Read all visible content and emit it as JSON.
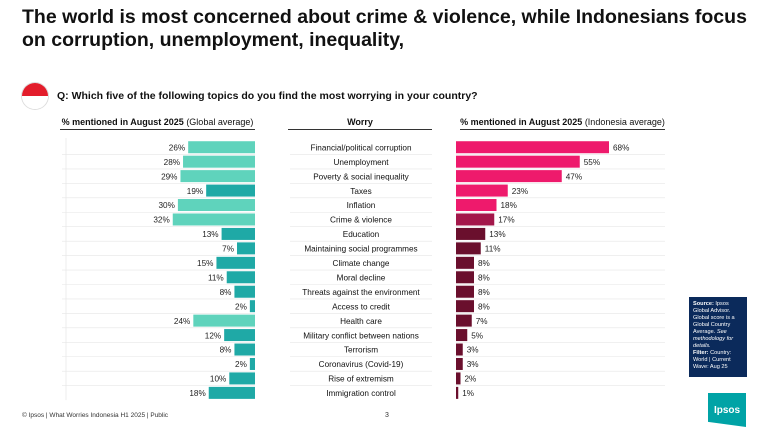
{
  "header": {
    "title": "The world is most concerned about crime & violence, while Indonesians focus on corruption, unemployment, inequality,",
    "question": "Q: Which five of the following topics do you find the most worrying in your country?"
  },
  "columns": {
    "global_head_bold": "% mentioned in August 2025 ",
    "global_head_rest": "(Global average)",
    "worry_head": "Worry",
    "indo_head_bold": "% mentioned in August 2025 ",
    "indo_head_rest": "(Indonesia average)"
  },
  "chart_data": {
    "type": "bar",
    "categories": [
      "Financial/political corruption",
      "Unemployment",
      "Poverty & social inequality",
      "Taxes",
      "Inflation",
      "Crime & violence",
      "Education",
      "Maintaining social programmes",
      "Climate change",
      "Moral decline",
      "Threats against the environment",
      "Access to credit",
      "Health care",
      "Military conflict between nations",
      "Terrorism",
      "Coronavirus (Covid-19)",
      "Rise of extremism",
      "Immigration control"
    ],
    "series": [
      {
        "values": [
          26,
          28,
          29,
          19,
          30,
          32,
          13,
          7,
          15,
          11,
          8,
          2,
          24,
          12,
          8,
          2,
          10,
          18
        ],
        "labels": [
          "26%",
          "28%",
          "29%",
          "19%",
          "30%",
          "32%",
          "13%",
          "7%",
          "15%",
          "11%",
          "8%",
          "2%",
          "24%",
          "12%",
          "8%",
          "2%",
          "10%",
          "18%"
        ]
      },
      {
        "values": [
          68,
          55,
          47,
          23,
          18,
          17,
          13,
          11,
          8,
          8,
          8,
          8,
          7,
          5,
          3,
          3,
          2,
          1
        ],
        "labels": [
          "68%",
          "55%",
          "47%",
          "23%",
          "18%",
          "17%",
          "13%",
          "11%",
          "8%",
          "8%",
          "8%",
          "8%",
          "7%",
          "5%",
          "3%",
          "3%",
          "2%",
          "1%"
        ]
      }
    ],
    "colors": {
      "global_light": "#5fd3bc",
      "global_dark": "#1fa9a6",
      "indo_pink": "#ee1a6c",
      "indo_deep": "#a3174a",
      "indo_dark": "#6a0f2d"
    }
  },
  "source": {
    "label": "Source:",
    "text": " Ipsos Global Advisor. Global score is a Global Country Average. ",
    "italic": "See methodology for details.",
    "filter_label": "Filter:",
    "filter_text": " Country: World | Current Wave: Aug 25"
  },
  "footer": {
    "text": "© Ipsos | What Worries Indonesia H1 2025 | Public",
    "page": "3",
    "logo": "Ipsos"
  }
}
